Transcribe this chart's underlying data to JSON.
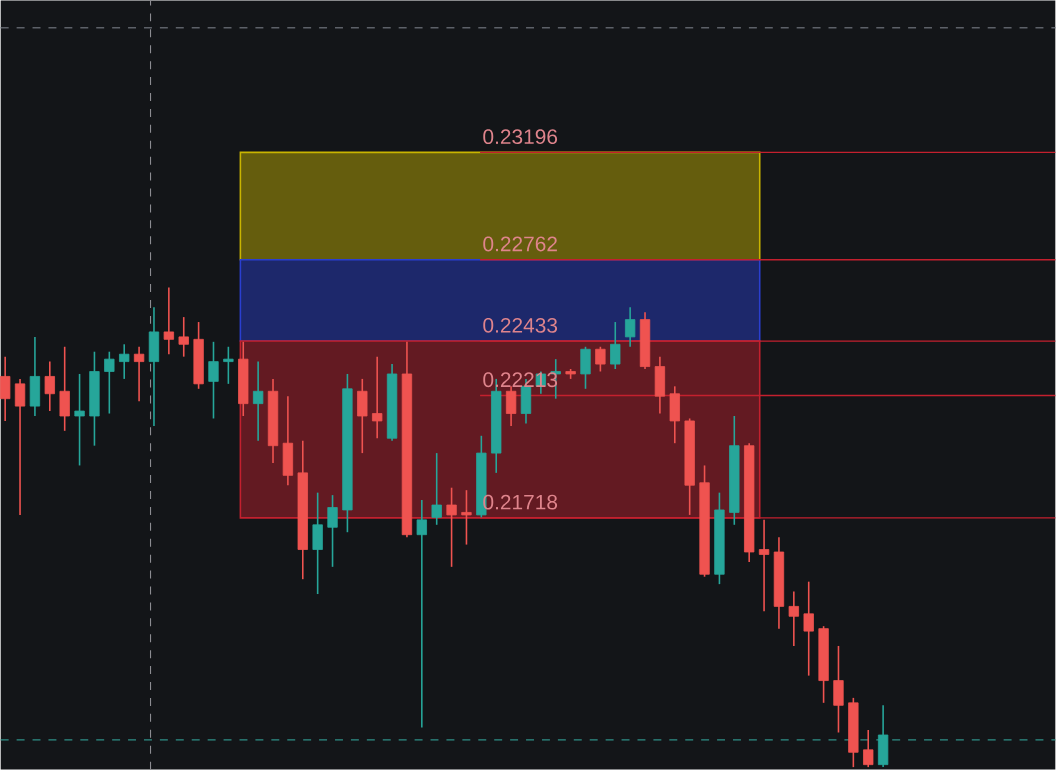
{
  "chart_data": {
    "type": "candlestick",
    "categories": [
      null,
      null,
      null,
      null,
      null,
      null,
      null,
      null,
      null,
      null,
      null,
      null,
      null,
      null,
      null,
      null,
      null,
      null,
      null,
      null,
      null,
      null,
      null,
      null,
      null,
      null,
      null,
      null,
      null,
      null,
      null,
      null,
      null,
      null,
      null,
      null,
      null,
      null,
      null,
      null,
      null,
      null,
      null,
      null,
      null,
      null,
      null,
      null,
      null,
      null,
      null,
      null,
      null,
      null,
      null,
      null,
      null,
      null,
      null,
      null
    ],
    "ohlc": [
      [
        0.2229,
        0.2237,
        0.2211,
        0.222
      ],
      [
        0.2226,
        0.2228,
        0.2173,
        0.2217
      ],
      [
        0.2217,
        0.2245,
        0.2213,
        0.2229
      ],
      [
        0.2229,
        0.2235,
        0.2215,
        0.2222
      ],
      [
        0.2223,
        0.2241,
        0.2207,
        0.2213
      ],
      [
        0.2213,
        0.223,
        0.2193,
        0.2215
      ],
      [
        0.2213,
        0.2239,
        0.2201,
        0.2231
      ],
      [
        0.2231,
        0.2239,
        0.2214,
        0.2236
      ],
      [
        0.2235,
        0.2242,
        0.2228,
        0.2238
      ],
      [
        0.2238,
        0.2241,
        0.2219,
        0.2235
      ],
      [
        0.2235,
        0.2257,
        0.2209,
        0.2247
      ],
      [
        0.2247,
        0.2265,
        0.2238,
        0.2244
      ],
      [
        0.2245,
        0.2253,
        0.2237,
        0.2242
      ],
      [
        0.2244,
        0.2251,
        0.2224,
        0.2226
      ],
      [
        0.2227,
        0.2243,
        0.2212,
        0.2235
      ],
      [
        0.2235,
        0.2241,
        0.2226,
        0.2236
      ],
      [
        0.2236,
        0.2243,
        0.2213,
        0.2218
      ],
      [
        0.2218,
        0.2235,
        0.2203,
        0.2223
      ],
      [
        0.2223,
        0.2228,
        0.2194,
        0.2201
      ],
      [
        0.2202,
        0.2221,
        0.2185,
        0.2189
      ],
      [
        0.219,
        0.2203,
        0.2147,
        0.2159
      ],
      [
        0.2159,
        0.2182,
        0.2141,
        0.2169
      ],
      [
        0.2168,
        0.2181,
        0.2152,
        0.2176
      ],
      [
        0.2175,
        0.223,
        0.2166,
        0.2224
      ],
      [
        0.2223,
        0.2228,
        0.2198,
        0.2213
      ],
      [
        0.2214,
        0.2237,
        0.2204,
        0.2211
      ],
      [
        0.2204,
        0.2234,
        0.2203,
        0.223
      ],
      [
        0.223,
        0.2243,
        0.2164,
        0.2165
      ],
      [
        0.2165,
        0.2179,
        0.2087,
        0.2171
      ],
      [
        0.2172,
        0.2198,
        0.2169,
        0.2177
      ],
      [
        0.2177,
        0.2184,
        0.2152,
        0.2173
      ],
      [
        0.2174,
        0.2183,
        0.2161,
        0.2173
      ],
      [
        0.2173,
        0.2205,
        0.2172,
        0.2198
      ],
      [
        0.2198,
        0.2228,
        0.219,
        0.2223
      ],
      [
        0.2223,
        0.2225,
        0.2209,
        0.2214
      ],
      [
        0.2214,
        0.2228,
        0.221,
        0.2225
      ],
      [
        0.2225,
        0.2231,
        0.2222,
        0.223
      ],
      [
        0.223,
        0.2236,
        0.222,
        0.2231
      ],
      [
        0.2231,
        0.2232,
        0.2228,
        0.223
      ],
      [
        0.223,
        0.2241,
        0.2224,
        0.224
      ],
      [
        0.224,
        0.2241,
        0.2231,
        0.2234
      ],
      [
        0.2234,
        0.2251,
        0.2232,
        0.2242
      ],
      [
        0.2245,
        0.2257,
        0.2241,
        0.2252
      ],
      [
        0.2252,
        0.2255,
        0.2232,
        0.2233
      ],
      [
        0.2233,
        0.2237,
        0.2214,
        0.2221
      ],
      [
        0.2222,
        0.2225,
        0.2202,
        0.2211
      ],
      [
        0.2211,
        0.2212,
        0.2173,
        0.2185
      ],
      [
        0.2186,
        0.2193,
        0.2148,
        0.2149
      ],
      [
        0.2149,
        0.2182,
        0.2145,
        0.2175
      ],
      [
        0.2174,
        0.2213,
        0.2169,
        0.2201
      ],
      [
        0.2201,
        0.2202,
        0.2154,
        0.2158
      ],
      [
        0.2159,
        0.2171,
        0.2134,
        0.2157
      ],
      [
        0.2158,
        0.2164,
        0.2127,
        0.2136
      ],
      [
        0.2136,
        0.2142,
        0.212,
        0.2132
      ],
      [
        0.2133,
        0.2146,
        0.2108,
        0.2126
      ],
      [
        0.2127,
        0.2128,
        0.2097,
        0.2106
      ],
      [
        0.2106,
        0.212,
        0.2085,
        0.2096
      ],
      [
        0.2097,
        0.2099,
        0.2071,
        0.2077
      ],
      [
        0.2078,
        0.2086,
        0.2071,
        0.2072
      ],
      [
        0.2072,
        0.2096,
        0.2071,
        0.2084
      ]
    ],
    "colors": [
      "#ef5350",
      "#ef5350",
      "#26a69a",
      "#ef5350",
      "#ef5350",
      "#26a69a",
      "#26a69a",
      "#26a69a",
      "#26a69a",
      "#ef5350",
      "#26a69a",
      "#ef5350",
      "#ef5350",
      "#ef5350",
      "#26a69a",
      "#26a69a",
      "#ef5350",
      "#26a69a",
      "#ef5350",
      "#ef5350",
      "#ef5350",
      "#26a69a",
      "#26a69a",
      "#26a69a",
      "#ef5350",
      "#ef5350",
      "#26a69a",
      "#ef5350",
      "#26a69a",
      "#26a69a",
      "#ef5350",
      "#ef5350",
      "#26a69a",
      "#26a69a",
      "#ef5350",
      "#26a69a",
      "#26a69a",
      "#26a69a",
      "#ef5350",
      "#26a69a",
      "#ef5350",
      "#26a69a",
      "#26a69a",
      "#ef5350",
      "#ef5350",
      "#ef5350",
      "#ef5350",
      "#ef5350",
      "#26a69a",
      "#26a69a",
      "#ef5350",
      "#ef5350",
      "#ef5350",
      "#ef5350",
      "#ef5350",
      "#ef5350",
      "#ef5350",
      "#ef5350",
      "#ef5350",
      "#26a69a"
    ],
    "ylim": [
      0.207,
      0.2381
    ],
    "tick_labels": false,
    "bands": [
      {
        "axis": "y",
        "from": 0.22762,
        "to": 0.23196,
        "color": "#c9b400"
      },
      {
        "axis": "y",
        "from": 0.22433,
        "to": 0.22762,
        "color": "#2a3fd0"
      },
      {
        "axis": "y",
        "from": 0.21718,
        "to": 0.22433,
        "color": "#c4202e"
      }
    ],
    "ref_lines": [
      {
        "axis": "y",
        "value": 0.23196,
        "label": "0.23196",
        "color": "#c4202e"
      },
      {
        "axis": "y",
        "value": 0.22762,
        "label": "0.22762",
        "color": "#c4202e"
      },
      {
        "axis": "y",
        "value": 0.22433,
        "label": "0.22433",
        "color": "#c4202e"
      },
      {
        "axis": "y",
        "value": 0.22213,
        "label": "0.22213",
        "color": "#c4202e"
      },
      {
        "axis": "y",
        "value": 0.21718,
        "label": "0.21718",
        "color": "#c4202e"
      },
      {
        "axis": "y",
        "value": 0.237,
        "color": "#5d6168",
        "line_style": "dashed"
      },
      {
        "axis": "y",
        "value": 0.2082,
        "color": "#2f8f86",
        "line_style": "dashed"
      }
    ]
  }
}
